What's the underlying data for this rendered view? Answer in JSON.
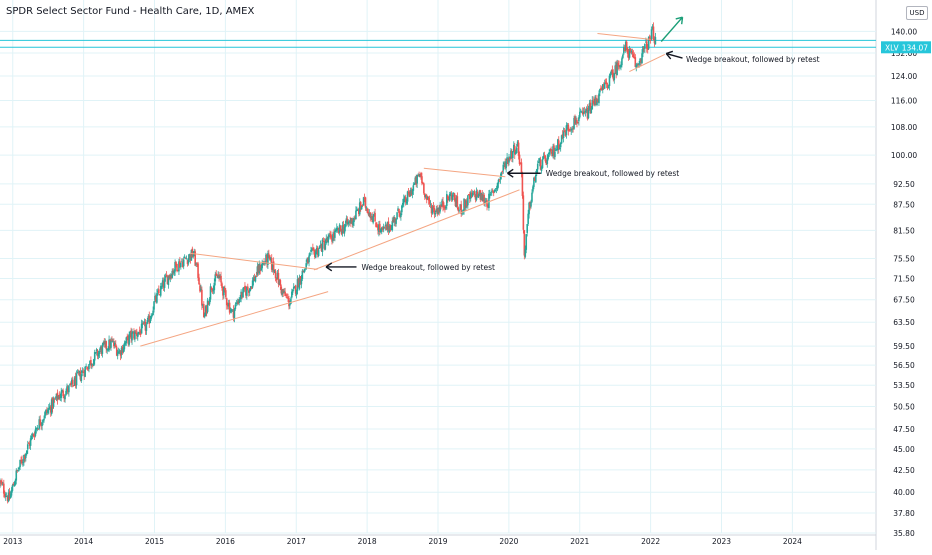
{
  "title": "SPDR Select Sector Fund - Health Care, 1D, AMEX",
  "currency": "USD",
  "price_badge": {
    "ticker": "XLV",
    "value": "134.07",
    "color": "#26c6da"
  },
  "colors": {
    "up": "#26a69a",
    "down": "#ef5350",
    "trendline": "#f4a582",
    "arrow_black": "#131722",
    "arrow_green": "#1a9e77",
    "grid": "#e0f3f7",
    "hline": "#26c6da"
  },
  "chart_data": {
    "type": "candlestick",
    "x_axis": {
      "ticks": [
        "2013",
        "2014",
        "2015",
        "2016",
        "2017",
        "2018",
        "2019",
        "2020",
        "2021",
        "2022",
        "2023",
        "2024"
      ],
      "range": [
        2012.82,
        2025.18
      ]
    },
    "y_axis": {
      "scale": "log",
      "range": [
        35.8,
        150
      ],
      "ticks": [
        "140.00",
        "132.00",
        "124.00",
        "116.00",
        "108.00",
        "100.00",
        "92.50",
        "87.50",
        "81.50",
        "75.50",
        "71.50",
        "67.50",
        "63.50",
        "59.50",
        "56.50",
        "53.50",
        "50.50",
        "47.50",
        "45.00",
        "42.50",
        "40.00",
        "37.80",
        "35.80"
      ],
      "last_price": 134.07,
      "horizontal_levels": [
        134.07,
        136.6
      ]
    },
    "price_path": [
      [
        2012.82,
        41
      ],
      [
        2012.95,
        39.2
      ],
      [
        2013.05,
        42
      ],
      [
        2013.2,
        45
      ],
      [
        2013.35,
        48
      ],
      [
        2013.5,
        50
      ],
      [
        2013.65,
        52
      ],
      [
        2013.8,
        53
      ],
      [
        2013.95,
        55
      ],
      [
        2014.1,
        57
      ],
      [
        2014.25,
        59
      ],
      [
        2014.4,
        60
      ],
      [
        2014.5,
        58.5
      ],
      [
        2014.65,
        61
      ],
      [
        2014.8,
        62
      ],
      [
        2014.9,
        63
      ],
      [
        2015.0,
        67
      ],
      [
        2015.15,
        71
      ],
      [
        2015.3,
        74
      ],
      [
        2015.45,
        75.5
      ],
      [
        2015.55,
        76.5
      ],
      [
        2015.62,
        72
      ],
      [
        2015.7,
        64
      ],
      [
        2015.8,
        70
      ],
      [
        2015.9,
        72
      ],
      [
        2016.0,
        68
      ],
      [
        2016.1,
        65
      ],
      [
        2016.2,
        68
      ],
      [
        2016.35,
        70
      ],
      [
        2016.5,
        74
      ],
      [
        2016.6,
        75.5
      ],
      [
        2016.7,
        73
      ],
      [
        2016.8,
        69
      ],
      [
        2016.9,
        67
      ],
      [
        2017.0,
        70
      ],
      [
        2017.1,
        73
      ],
      [
        2017.2,
        76
      ],
      [
        2017.35,
        78
      ],
      [
        2017.5,
        80
      ],
      [
        2017.65,
        82
      ],
      [
        2017.8,
        84
      ],
      [
        2017.95,
        88
      ],
      [
        2018.1,
        84
      ],
      [
        2018.2,
        81
      ],
      [
        2018.35,
        83
      ],
      [
        2018.5,
        87
      ],
      [
        2018.6,
        90
      ],
      [
        2018.75,
        95
      ],
      [
        2018.85,
        88
      ],
      [
        2018.95,
        86
      ],
      [
        2019.05,
        87
      ],
      [
        2019.2,
        90
      ],
      [
        2019.3,
        86
      ],
      [
        2019.45,
        89
      ],
      [
        2019.55,
        90
      ],
      [
        2019.7,
        88
      ],
      [
        2019.85,
        93
      ],
      [
        2019.95,
        98
      ],
      [
        2020.05,
        101
      ],
      [
        2020.12,
        103
      ],
      [
        2020.18,
        95
      ],
      [
        2020.22,
        75
      ],
      [
        2020.28,
        86
      ],
      [
        2020.4,
        97
      ],
      [
        2020.55,
        99
      ],
      [
        2020.7,
        103
      ],
      [
        2020.8,
        107
      ],
      [
        2020.95,
        110
      ],
      [
        2021.1,
        112
      ],
      [
        2021.25,
        117
      ],
      [
        2021.4,
        122
      ],
      [
        2021.55,
        128
      ],
      [
        2021.65,
        134
      ],
      [
        2021.75,
        130
      ],
      [
        2021.8,
        127
      ],
      [
        2021.9,
        133
      ],
      [
        2022.0,
        137
      ],
      [
        2022.03,
        140.5
      ],
      [
        2022.08,
        134
      ]
    ],
    "trendlines": [
      {
        "from": [
          2014.8,
          59.5
        ],
        "to": [
          2017.45,
          69.0
        ]
      },
      {
        "from": [
          2015.5,
          76.6
        ],
        "to": [
          2017.3,
          73.3
        ]
      },
      {
        "from": [
          2017.25,
          73.2
        ],
        "to": [
          2020.15,
          91.0
        ]
      },
      {
        "from": [
          2018.8,
          96.5
        ],
        "to": [
          2019.95,
          94.3
        ]
      },
      {
        "from": [
          2021.7,
          125.5
        ],
        "to": [
          2022.2,
          131.5
        ]
      },
      {
        "from": [
          2021.25,
          139.2
        ],
        "to": [
          2022.0,
          137.0
        ]
      }
    ],
    "annotations": [
      {
        "text": "Wedge breakout, followed by retest",
        "arrow_tip": [
          2017.42,
          73.8
        ],
        "arrow_tail": [
          2017.85,
          73.8
        ],
        "text_at": [
          2017.92,
          73.8
        ]
      },
      {
        "text": "Wedge breakout, followed by retest",
        "arrow_tip": [
          2019.98,
          95.2
        ],
        "arrow_tail": [
          2020.45,
          95.2
        ],
        "text_at": [
          2020.52,
          95.2
        ]
      },
      {
        "text": "Wedge breakout, followed by retest",
        "arrow_tip": [
          2022.22,
          131.8
        ],
        "arrow_tail": [
          2022.45,
          130.2
        ],
        "text_at": [
          2022.5,
          129.8
        ]
      }
    ],
    "projection_arrow": {
      "from": [
        2022.15,
        136.2
      ],
      "to": [
        2022.45,
        145.5
      ]
    }
  }
}
